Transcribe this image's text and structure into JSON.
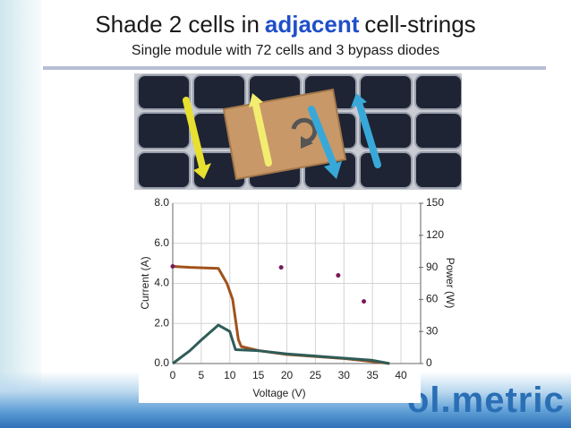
{
  "slide": {
    "title_parts": [
      "Shade 2 cells in",
      "adjacent",
      "cell-strings"
    ],
    "subtitle": "Single module with 72 cells and 3 bypass diodes",
    "logo": "ol.metric"
  },
  "chart_data": {
    "type": "line",
    "xlabel": "Voltage (V)",
    "ylabel": "Current (A)",
    "y2label": "Power (W)",
    "xlim": [
      0,
      40
    ],
    "xticks": [
      0,
      5,
      10,
      15,
      20,
      25,
      30,
      35,
      40
    ],
    "ylim": [
      0,
      8
    ],
    "yticks": [
      {
        "value": 0,
        "label": "0.0"
      },
      {
        "value": 2,
        "label": "2.0"
      },
      {
        "value": 4,
        "label": "4.0"
      },
      {
        "value": 6,
        "label": "6.0"
      },
      {
        "value": 8,
        "label": "8.0"
      }
    ],
    "y2lim": [
      0,
      150
    ],
    "y2ticks": [
      0,
      30,
      60,
      90,
      120,
      150
    ],
    "grid": true,
    "series": [
      {
        "type": "line",
        "color": "#a0521c",
        "axis": "y",
        "x": [
          0,
          3,
          8,
          9.5,
          10.5,
          11.5,
          12,
          15,
          20,
          25,
          30,
          35,
          38
        ],
        "values": [
          4.85,
          4.8,
          4.75,
          4.0,
          3.2,
          1.2,
          0.85,
          0.65,
          0.45,
          0.35,
          0.25,
          0.1,
          0.0
        ]
      },
      {
        "type": "line",
        "color": "#2f5c58",
        "axis": "y2",
        "x": [
          0,
          3,
          5,
          8,
          10,
          11,
          15,
          20,
          25,
          30,
          35,
          38
        ],
        "values": [
          0,
          12,
          22,
          36,
          30,
          13,
          12,
          9,
          7,
          5,
          3,
          0
        ]
      },
      {
        "type": "scatter",
        "color": "#7a1a5a",
        "axis": "y",
        "x": [
          0,
          19,
          29,
          33.5
        ],
        "values": [
          4.85,
          4.8,
          4.4,
          3.1
        ]
      }
    ]
  }
}
